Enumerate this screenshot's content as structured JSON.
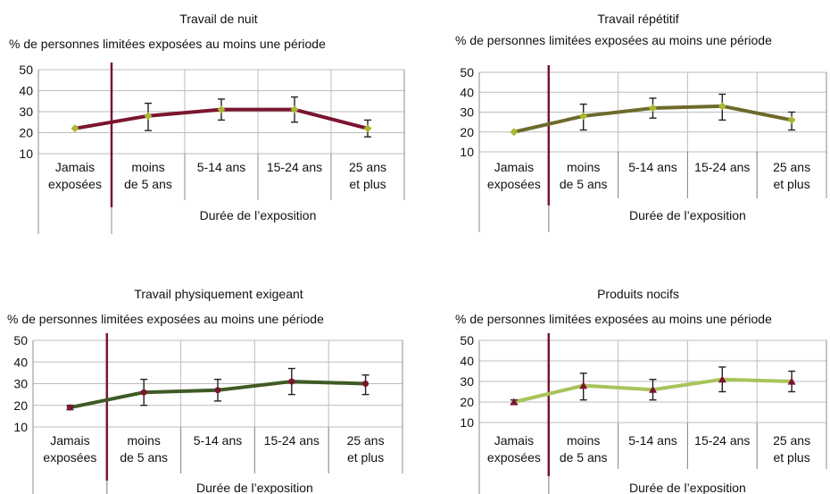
{
  "chart_data": [
    {
      "type": "line",
      "title": "Travail de nuit",
      "ylabel": "% de personnes limitées exposées au moins une période",
      "xlabel": "Durée de l’exposition",
      "categories": [
        [
          "Jamais",
          "exposées"
        ],
        [
          "moins",
          "de 5 ans"
        ],
        [
          "5-14 ans"
        ],
        [
          "15-24 ans"
        ],
        [
          "25 ans",
          "et plus"
        ]
      ],
      "ylim": [
        10,
        50
      ],
      "yticks": [
        10,
        20,
        30,
        40,
        50
      ],
      "grid": true,
      "line_color": "#7a1530",
      "marker": "diamond",
      "marker_color": "#a8b832",
      "series": [
        {
          "values": [
            22,
            28,
            31,
            31,
            22
          ],
          "error_low": [
            22,
            21,
            26,
            25,
            18
          ],
          "error_high": [
            22,
            34,
            36,
            37,
            26
          ]
        }
      ]
    },
    {
      "type": "line",
      "title": "Travail répétitif",
      "ylabel": "% de personnes limitées exposées au moins une période",
      "xlabel": "Durée de l’exposition",
      "categories": [
        [
          "Jamais",
          "exposées"
        ],
        [
          "moins",
          "de 5 ans"
        ],
        [
          "5-14 ans"
        ],
        [
          "15-24 ans"
        ],
        [
          "25 ans",
          "et plus"
        ]
      ],
      "ylim": [
        10,
        50
      ],
      "yticks": [
        10,
        20,
        30,
        40,
        50
      ],
      "grid": true,
      "line_color": "#6e6a2c",
      "marker": "diamond",
      "marker_color": "#a8b832",
      "series": [
        {
          "values": [
            20,
            28,
            32,
            33,
            26
          ],
          "error_low": [
            20,
            21,
            27,
            26,
            21
          ],
          "error_high": [
            20,
            34,
            37,
            39,
            30
          ]
        }
      ]
    },
    {
      "type": "line",
      "title": "Travail physiquement exigeant",
      "ylabel": "% de personnes limitées exposées au moins une période",
      "xlabel": "Durée de l’exposition",
      "categories": [
        [
          "Jamais",
          "exposées"
        ],
        [
          "moins",
          "de 5 ans"
        ],
        [
          "5-14 ans"
        ],
        [
          "15-24 ans"
        ],
        [
          "25 ans",
          "et plus"
        ]
      ],
      "ylim": [
        10,
        50
      ],
      "yticks": [
        10,
        20,
        30,
        40,
        50
      ],
      "grid": true,
      "line_color": "#3f5a24",
      "marker": "circle",
      "marker_color": "#7a1530",
      "series": [
        {
          "values": [
            19,
            26,
            27,
            31,
            30
          ],
          "error_low": [
            18,
            20,
            22,
            25,
            25
          ],
          "error_high": [
            20,
            32,
            32,
            37,
            34
          ]
        }
      ]
    },
    {
      "type": "line",
      "title": "Produits nocifs",
      "ylabel": "% de personnes limitées exposées au moins une période",
      "xlabel": "Durée de l’exposition",
      "categories": [
        [
          "Jamais",
          "exposées"
        ],
        [
          "moins",
          "de 5 ans"
        ],
        [
          "5-14 ans"
        ],
        [
          "15-24 ans"
        ],
        [
          "25 ans",
          "et plus"
        ]
      ],
      "ylim": [
        10,
        50
      ],
      "yticks": [
        10,
        20,
        30,
        40,
        50
      ],
      "grid": true,
      "line_color": "#a8c45a",
      "marker": "triangle",
      "marker_color": "#7a1530",
      "series": [
        {
          "values": [
            20,
            28,
            26,
            31,
            30
          ],
          "error_low": [
            19,
            21,
            21,
            25,
            25
          ],
          "error_high": [
            21,
            34,
            31,
            37,
            35
          ]
        }
      ]
    }
  ],
  "colors": {
    "divider": "#7a1530",
    "grid": "#bdbdbd",
    "axis": "#8c8c8c",
    "error_bar": "#222222"
  }
}
